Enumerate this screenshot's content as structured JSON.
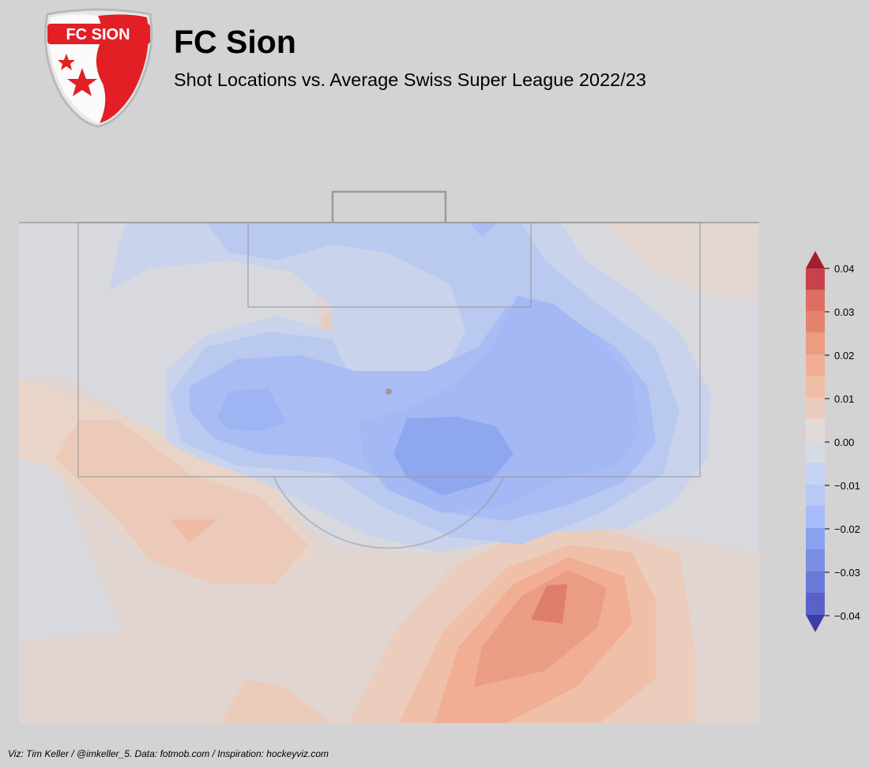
{
  "header": {
    "title": "FC Sion",
    "subtitle": "Shot Locations vs. Average Swiss Super League 2022/23",
    "logo_text": "FC SION"
  },
  "footer": {
    "credit": "Viz: Tim Keller / @imkeller_5. Data: fotmob.com / Inspiration: hockeyviz.com"
  },
  "colors": {
    "background": "#d3d3d3",
    "pitch_lines": "#9a9a9a",
    "scale": [
      "#3b3fa5",
      "#6b79d8",
      "#8a9ef0",
      "#a6bbf8",
      "#c2d3f6",
      "#d6dbe3",
      "#e8d2c8",
      "#f1bda5",
      "#ec9c80",
      "#dd6e62",
      "#c9414d",
      "#a41f2e"
    ]
  },
  "chart_data": {
    "type": "heatmap",
    "subtype": "filled contour (diverging)",
    "title": "FC Sion",
    "subtitle": "Shot Locations vs. Average Swiss Super League 2022/23",
    "colorbar": {
      "ticks": [
        "0.04",
        "0.03",
        "0.02",
        "0.01",
        "0.00",
        "−0.01",
        "−0.02",
        "−0.03",
        "−0.04"
      ],
      "range": [
        -0.04,
        0.04
      ],
      "levels": [
        -0.04,
        -0.035,
        -0.03,
        -0.025,
        -0.02,
        -0.015,
        -0.01,
        -0.005,
        0,
        0.005,
        0.01,
        0.015,
        0.02,
        0.025,
        0.03,
        0.035,
        0.04
      ],
      "extend": "both",
      "cmap": "coolwarm"
    },
    "regions": [
      {
        "label": "six-yard box, centre-left",
        "value": -0.005
      },
      {
        "label": "penalty spot area",
        "value": 0.01
      },
      {
        "label": "left side of box",
        "value": -0.02
      },
      {
        "label": "centre, edge of box",
        "value": -0.025
      },
      {
        "label": "right side of box",
        "value": -0.02
      },
      {
        "label": "left wing, outside box",
        "value": 0.01
      },
      {
        "label": "centre-right, far outside box",
        "value": 0.025
      },
      {
        "label": "top-right corner of pitch",
        "value": 0.005
      }
    ],
    "grid": false,
    "legend": "colorbar right"
  }
}
